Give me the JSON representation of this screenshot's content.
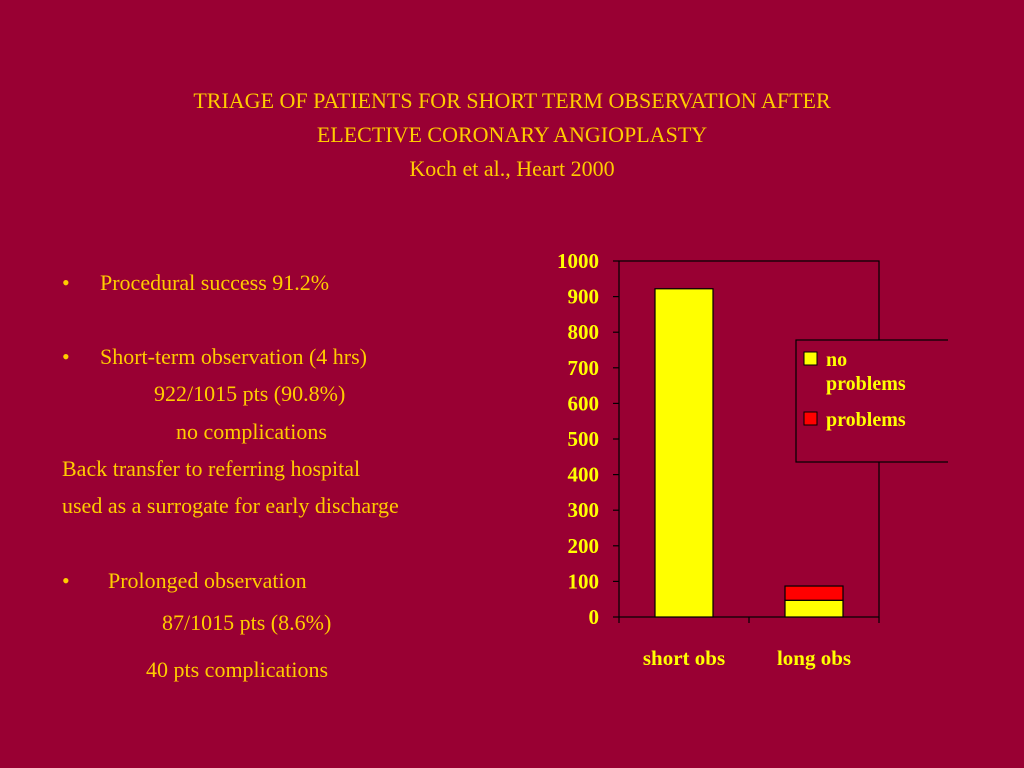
{
  "colors": {
    "background": "#990033",
    "text": "#FFCC00",
    "chart_text": "#FFFF00",
    "no_problems": "#FFFF00",
    "problems": "#FF0000",
    "axis": "#000000"
  },
  "title": {
    "line1": "TRIAGE OF PATIENTS FOR SHORT TERM OBSERVATION AFTER",
    "line2": "ELECTIVE CORONARY ANGIOPLASTY",
    "line3": "Koch et al.,  Heart 2000"
  },
  "bullets": {
    "symbol": "•",
    "item1": "Procedural success  91.2%",
    "item2": "Short-term observation (4 hrs)",
    "item2_line2": "922/1015 pts (90.8%)",
    "item2_line3": "no complications",
    "item2_line4": "Back transfer to referring hospital",
    "item2_line5": "used as a surrogate for early discharge",
    "item3": "Prolonged observation",
    "item3_line2": "87/1015 pts (8.6%)",
    "item3_line3": "40 pts   complications"
  },
  "chart_data": {
    "type": "bar",
    "stacked": true,
    "categories": [
      "short obs",
      "long obs"
    ],
    "series": [
      {
        "name": "no\nproblems",
        "values": [
          922,
          47
        ],
        "color": "#FFFF00"
      },
      {
        "name": "problems",
        "values": [
          0,
          40
        ],
        "color": "#FF0000"
      }
    ],
    "legend": [
      "no",
      "problems",
      "problems"
    ],
    "ylim": [
      0,
      1000
    ],
    "yticks": [
      "1000",
      "900",
      "800",
      "700",
      "600",
      "500",
      "400",
      "300",
      "200",
      "100",
      "0"
    ],
    "title": "",
    "xlabel": "",
    "ylabel": "",
    "grid": false,
    "legend_position": "right"
  }
}
